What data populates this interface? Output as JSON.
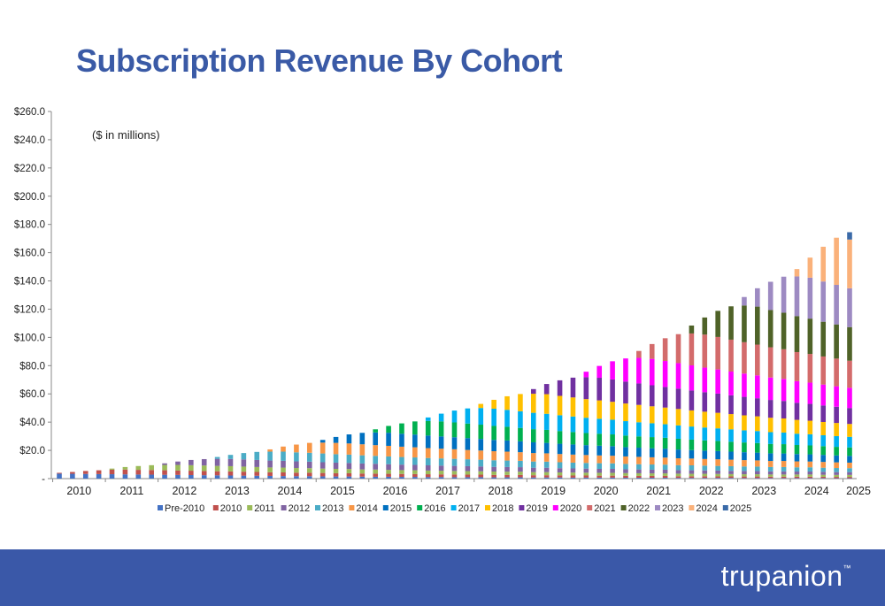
{
  "title": "Subscription Revenue By Cohort",
  "brand": {
    "name": "trupanion",
    "mark": "™"
  },
  "colors": {
    "title": "#3a5aa6",
    "footer": "#3a58a8"
  },
  "chart_data": {
    "type": "bar",
    "stacked": true,
    "note": "($ in millions)",
    "ylim": [
      0,
      260
    ],
    "yticks": [
      0,
      20,
      40,
      60,
      80,
      100,
      120,
      140,
      160,
      180,
      200,
      220,
      240,
      260
    ],
    "ytick_labels": [
      "-",
      "$20.0",
      "$40.0",
      "$60.0",
      "$80.0",
      "$100.0",
      "$120.0",
      "$140.0",
      "$160.0",
      "$180.0",
      "$200.0",
      "$220.0",
      "$240.0",
      "$260.0"
    ],
    "x_labels": [
      "2010",
      "2011",
      "2012",
      "2013",
      "2014",
      "2015",
      "2016",
      "2017",
      "2018",
      "2019",
      "2020",
      "2021",
      "2022",
      "2023",
      "2024",
      "2025"
    ],
    "quarters": [
      "Q1 2010",
      "Q2 2010",
      "Q3 2010",
      "Q4 2010",
      "Q1 2011",
      "Q2 2011",
      "Q3 2011",
      "Q4 2011",
      "Q1 2012",
      "Q2 2012",
      "Q3 2012",
      "Q4 2012",
      "Q1 2013",
      "Q2 2013",
      "Q3 2013",
      "Q4 2013",
      "Q1 2014",
      "Q2 2014",
      "Q3 2014",
      "Q4 2014",
      "Q1 2015",
      "Q2 2015",
      "Q3 2015",
      "Q4 2015",
      "Q1 2016",
      "Q2 2016",
      "Q3 2016",
      "Q4 2016",
      "Q1 2017",
      "Q2 2017",
      "Q3 2017",
      "Q4 2017",
      "Q1 2018",
      "Q2 2018",
      "Q3 2018",
      "Q4 2018",
      "Q1 2019",
      "Q2 2019",
      "Q3 2019",
      "Q4 2019",
      "Q1 2020",
      "Q2 2020",
      "Q3 2020",
      "Q4 2020",
      "Q1 2021",
      "Q2 2021",
      "Q3 2021",
      "Q4 2021",
      "Q1 2022",
      "Q2 2022",
      "Q3 2022",
      "Q4 2022",
      "Q1 2023",
      "Q2 2023",
      "Q3 2023",
      "Q4 2023",
      "Q1 2024",
      "Q2 2024",
      "Q3 2024",
      "Q4 2024",
      "Q1 2025"
    ],
    "series": [
      {
        "name": "Pre-2010",
        "color": "#4472c4",
        "values": [
          3.5,
          3.4,
          3.3,
          3.2,
          3.1,
          3,
          2.9,
          2.8,
          2.7,
          2.6,
          2.5,
          2.4,
          2.3,
          2.2,
          2.1,
          2,
          1.9,
          1.8,
          1.7,
          1.7,
          1.6,
          1.5,
          1.5,
          1.4,
          1.3,
          1.3,
          1.2,
          1.2,
          1.1,
          1.1,
          1,
          1,
          1,
          0.9,
          0.9,
          0.9,
          0.8,
          0.8,
          0.8,
          0.7,
          0.7,
          0.7,
          0.7,
          0.6,
          0.6,
          0.6,
          0.6,
          0.5,
          0.5,
          0.5,
          0.5,
          0.5,
          0.4,
          0.4,
          0.4,
          0.4,
          0.4,
          0.4,
          0.4,
          0.3,
          0.3
        ]
      },
      {
        "name": "2010",
        "color": "#c0504d",
        "values": [
          0.6,
          1.3,
          2.1,
          2.7,
          3.2,
          3.4,
          3.3,
          3.3,
          3.2,
          3.1,
          3.1,
          3,
          2.9,
          2.9,
          2.8,
          2.7,
          2.6,
          2.6,
          2.5,
          2.5,
          2.4,
          2.3,
          2.3,
          2.2,
          2.2,
          2.1,
          2.1,
          2,
          2,
          1.9,
          1.9,
          1.8,
          1.8,
          1.7,
          1.7,
          1.7,
          1.6,
          1.6,
          1.5,
          1.5,
          1.5,
          1.4,
          1.4,
          1.4,
          1.3,
          1.3,
          1.3,
          1.2,
          1.2,
          1.2,
          1.1,
          1.1,
          1.1,
          1.1,
          1,
          1,
          1,
          1,
          0.9,
          0.9,
          0.9
        ]
      },
      {
        "name": "2011",
        "color": "#9bbb59",
        "values": [
          0,
          0,
          0,
          0,
          0.8,
          1.8,
          2.7,
          3.4,
          3.8,
          4,
          3.9,
          3.9,
          3.8,
          3.7,
          3.6,
          3.5,
          3.4,
          3.4,
          3.3,
          3.2,
          3.1,
          3.1,
          3,
          2.9,
          2.9,
          2.8,
          2.7,
          2.7,
          2.6,
          2.6,
          2.5,
          2.5,
          2.4,
          2.4,
          2.3,
          2.3,
          2.2,
          2.2,
          2.1,
          2.1,
          2,
          2,
          2,
          1.9,
          1.9,
          1.8,
          1.8,
          1.8,
          1.7,
          1.7,
          1.7,
          1.6,
          1.6,
          1.6,
          1.5,
          1.5,
          1.5,
          1.5,
          1.4,
          1.4,
          1.4
        ]
      },
      {
        "name": "2012",
        "color": "#8064a2",
        "values": [
          0,
          0,
          0,
          0,
          0,
          0,
          0,
          0,
          1.1,
          2.4,
          3.7,
          4.5,
          5,
          5.1,
          5.1,
          5,
          4.9,
          4.8,
          4.7,
          4.6,
          4.5,
          4.4,
          4.3,
          4.2,
          4.1,
          4,
          3.9,
          3.8,
          3.7,
          3.6,
          3.6,
          3.5,
          3.4,
          3.3,
          3.3,
          3.2,
          3.1,
          3.1,
          3,
          2.9,
          2.9,
          2.8,
          2.8,
          2.7,
          2.7,
          2.6,
          2.6,
          2.5,
          2.5,
          2.4,
          2.4,
          2.3,
          2.3,
          2.2,
          2.2,
          2.2,
          2.1,
          2.1,
          2.1,
          2,
          2
        ]
      },
      {
        "name": "2013",
        "color": "#4bacc6",
        "values": [
          0,
          0,
          0,
          0,
          0,
          0,
          0,
          0,
          0,
          0,
          0,
          0,
          1.3,
          2.9,
          4.5,
          5.7,
          6.3,
          6.5,
          6.4,
          6.3,
          6.2,
          6,
          5.9,
          5.8,
          5.6,
          5.5,
          5.4,
          5.3,
          5.2,
          5.1,
          5,
          4.9,
          4.8,
          4.7,
          4.6,
          4.5,
          4.4,
          4.3,
          4.2,
          4.1,
          4,
          4,
          3.9,
          3.8,
          3.7,
          3.7,
          3.6,
          3.5,
          3.5,
          3.4,
          3.3,
          3.3,
          3.2,
          3.2,
          3.1,
          3.1,
          3,
          3,
          2.9,
          2.9,
          2.8
        ]
      },
      {
        "name": "2014",
        "color": "#f79646",
        "values": [
          0,
          0,
          0,
          0,
          0,
          0,
          0,
          0,
          0,
          0,
          0,
          0,
          0,
          0,
          0,
          0,
          1.6,
          3.6,
          5.5,
          7,
          7.7,
          8,
          7.9,
          7.8,
          7.6,
          7.5,
          7.3,
          7.2,
          7,
          6.9,
          6.8,
          6.6,
          6.5,
          6.4,
          6.3,
          6.1,
          6,
          5.9,
          5.8,
          5.7,
          5.6,
          5.5,
          5.4,
          5.3,
          5.2,
          5.1,
          5,
          4.9,
          4.8,
          4.7,
          4.7,
          4.6,
          4.5,
          4.4,
          4.3,
          4.3,
          4.2,
          4.1,
          4.1,
          4,
          3.9
        ]
      },
      {
        "name": "2015",
        "color": "#0070c0",
        "values": [
          0,
          0,
          0,
          0,
          0,
          0,
          0,
          0,
          0,
          0,
          0,
          0,
          0,
          0,
          0,
          0,
          0,
          0,
          0,
          0,
          1.9,
          4.2,
          6.4,
          8.1,
          9,
          9.3,
          9.2,
          9,
          8.9,
          8.7,
          8.5,
          8.4,
          8.2,
          8,
          7.9,
          7.7,
          7.6,
          7.4,
          7.3,
          7.2,
          7,
          6.9,
          6.8,
          6.6,
          6.5,
          6.4,
          6.3,
          6.2,
          6,
          5.9,
          5.8,
          5.7,
          5.6,
          5.5,
          5.4,
          5.3,
          5.2,
          5.1,
          5,
          4.9,
          4.8
        ]
      },
      {
        "name": "2016",
        "color": "#00b050",
        "values": [
          0,
          0,
          0,
          0,
          0,
          0,
          0,
          0,
          0,
          0,
          0,
          0,
          0,
          0,
          0,
          0,
          0,
          0,
          0,
          0,
          0,
          0,
          0,
          0,
          2.2,
          4.8,
          7.3,
          9.3,
          10.3,
          10.6,
          10.5,
          10.3,
          10.1,
          9.9,
          9.7,
          9.5,
          9.3,
          9.2,
          9,
          8.8,
          8.6,
          8.5,
          8.3,
          8.2,
          8,
          7.9,
          7.7,
          7.6,
          7.4,
          7.3,
          7.2,
          7,
          6.9,
          6.8,
          6.7,
          6.6,
          6.4,
          6.3,
          6.2,
          6.1,
          6
        ]
      },
      {
        "name": "2017",
        "color": "#00b0f0",
        "values": [
          0,
          0,
          0,
          0,
          0,
          0,
          0,
          0,
          0,
          0,
          0,
          0,
          0,
          0,
          0,
          0,
          0,
          0,
          0,
          0,
          0,
          0,
          0,
          0,
          0,
          0,
          0,
          0,
          2.5,
          5.5,
          8.4,
          10.7,
          11.8,
          12.2,
          12,
          11.8,
          11.6,
          11.4,
          11.2,
          11,
          10.8,
          10.6,
          10.4,
          10.2,
          10,
          9.8,
          9.6,
          9.5,
          9.3,
          9.1,
          8.9,
          8.8,
          8.6,
          8.5,
          8.3,
          8.2,
          8,
          7.9,
          7.7,
          7.6,
          7.5
        ]
      },
      {
        "name": "2018",
        "color": "#ffc000",
        "values": [
          0,
          0,
          0,
          0,
          0,
          0,
          0,
          0,
          0,
          0,
          0,
          0,
          0,
          0,
          0,
          0,
          0,
          0,
          0,
          0,
          0,
          0,
          0,
          0,
          0,
          0,
          0,
          0,
          0,
          0,
          0,
          0,
          2.9,
          6.3,
          9.6,
          12.2,
          13.5,
          13.9,
          13.7,
          13.5,
          13.2,
          13,
          12.7,
          12.5,
          12.3,
          12,
          11.8,
          11.6,
          11.4,
          11.2,
          11,
          10.8,
          10.6,
          10.4,
          10.2,
          10,
          9.8,
          9.6,
          9.4,
          9.3,
          9.1
        ]
      },
      {
        "name": "2019",
        "color": "#7030a0",
        "values": [
          0,
          0,
          0,
          0,
          0,
          0,
          0,
          0,
          0,
          0,
          0,
          0,
          0,
          0,
          0,
          0,
          0,
          0,
          0,
          0,
          0,
          0,
          0,
          0,
          0,
          0,
          0,
          0,
          0,
          0,
          0,
          0,
          0,
          0,
          0,
          0,
          3.3,
          7.2,
          11,
          14,
          15.5,
          16,
          15.8,
          15.5,
          15.2,
          14.9,
          14.6,
          14.4,
          14.1,
          13.8,
          13.6,
          13.3,
          13.1,
          12.8,
          12.6,
          12.4,
          12.1,
          11.9,
          11.7,
          11.5,
          11.3
        ]
      },
      {
        "name": "2020",
        "color": "#ff00ff",
        "values": [
          0,
          0,
          0,
          0,
          0,
          0,
          0,
          0,
          0,
          0,
          0,
          0,
          0,
          0,
          0,
          0,
          0,
          0,
          0,
          0,
          0,
          0,
          0,
          0,
          0,
          0,
          0,
          0,
          0,
          0,
          0,
          0,
          0,
          0,
          0,
          0,
          0,
          0,
          0,
          0,
          3.9,
          8.4,
          12.9,
          16.4,
          18.1,
          18.7,
          18.4,
          18.1,
          17.8,
          17.4,
          17.1,
          16.8,
          16.5,
          16.2,
          15.9,
          15.6,
          15.3,
          15.1,
          14.8,
          14.5,
          14.3
        ]
      },
      {
        "name": "2021",
        "color": "#d36b6b",
        "values": [
          0,
          0,
          0,
          0,
          0,
          0,
          0,
          0,
          0,
          0,
          0,
          0,
          0,
          0,
          0,
          0,
          0,
          0,
          0,
          0,
          0,
          0,
          0,
          0,
          0,
          0,
          0,
          0,
          0,
          0,
          0,
          0,
          0,
          0,
          0,
          0,
          0,
          0,
          0,
          0,
          0,
          0,
          0,
          0,
          4.9,
          10.5,
          16.1,
          20.5,
          22.6,
          23.4,
          23,
          22.6,
          22.2,
          21.8,
          21.4,
          21,
          20.6,
          20.3,
          19.9,
          19.6,
          19.2
        ]
      },
      {
        "name": "2022",
        "color": "#4f6228",
        "values": [
          0,
          0,
          0,
          0,
          0,
          0,
          0,
          0,
          0,
          0,
          0,
          0,
          0,
          0,
          0,
          0,
          0,
          0,
          0,
          0,
          0,
          0,
          0,
          0,
          0,
          0,
          0,
          0,
          0,
          0,
          0,
          0,
          0,
          0,
          0,
          0,
          0,
          0,
          0,
          0,
          0,
          0,
          0,
          0,
          0,
          0,
          0,
          0,
          5.6,
          12.1,
          18.5,
          23.6,
          26,
          26.9,
          26.4,
          25.9,
          25.5,
          25,
          24.6,
          24.2,
          23.8
        ]
      },
      {
        "name": "2023",
        "color": "#9d8ac2",
        "values": [
          0,
          0,
          0,
          0,
          0,
          0,
          0,
          0,
          0,
          0,
          0,
          0,
          0,
          0,
          0,
          0,
          0,
          0,
          0,
          0,
          0,
          0,
          0,
          0,
          0,
          0,
          0,
          0,
          0,
          0,
          0,
          0,
          0,
          0,
          0,
          0,
          0,
          0,
          0,
          0,
          0,
          0,
          0,
          0,
          0,
          0,
          0,
          0,
          0,
          0,
          0,
          0,
          6,
          13,
          20,
          25.5,
          28.1,
          29,
          28.5,
          28,
          27.5
        ]
      },
      {
        "name": "2024",
        "color": "#fab17a",
        "values": [
          0,
          0,
          0,
          0,
          0,
          0,
          0,
          0,
          0,
          0,
          0,
          0,
          0,
          0,
          0,
          0,
          0,
          0,
          0,
          0,
          0,
          0,
          0,
          0,
          0,
          0,
          0,
          0,
          0,
          0,
          0,
          0,
          0,
          0,
          0,
          0,
          0,
          0,
          0,
          0,
          0,
          0,
          0,
          0,
          0,
          0,
          0,
          0,
          0,
          0,
          0,
          0,
          0,
          0,
          0,
          0,
          5.2,
          14.2,
          24.6,
          33.4,
          34.5
        ]
      },
      {
        "name": "2025",
        "color": "#3a6aa8",
        "values": [
          0,
          0,
          0,
          0,
          0,
          0,
          0,
          0,
          0,
          0,
          0,
          0,
          0,
          0,
          0,
          0,
          0,
          0,
          0,
          0,
          0,
          0,
          0,
          0,
          0,
          0,
          0,
          0,
          0,
          0,
          0,
          0,
          0,
          0,
          0,
          0,
          0,
          0,
          0,
          0,
          0,
          0,
          0,
          0,
          0,
          0,
          0,
          0,
          0,
          0,
          0,
          0,
          0,
          0,
          0,
          0,
          0,
          0,
          0,
          0,
          5.2
        ]
      }
    ],
    "legend_position": "bottom"
  }
}
